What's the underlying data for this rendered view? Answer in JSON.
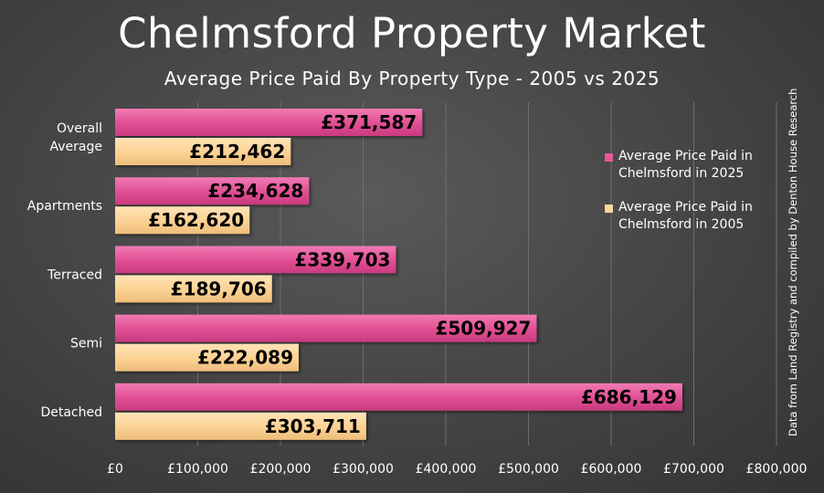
{
  "chart_data": {
    "type": "bar",
    "orientation": "horizontal",
    "title": "Chelmsford Property Market",
    "subtitle": "Average Price Paid By Property Type - 2005 vs 2025",
    "categories": [
      "Overall Average",
      "Apartments",
      "Terraced",
      "Semi",
      "Detached"
    ],
    "series": [
      {
        "name": "Average Price Paid in Chelmsford in 2025",
        "color": "#e8559a",
        "values": [
          371587,
          234628,
          339703,
          509927,
          686129
        ],
        "labels": [
          "£371,587",
          "£234,628",
          "£339,703",
          "£509,927",
          "£686,129"
        ]
      },
      {
        "name": "Average Price Paid in Chelmsford in 2005",
        "color": "#fcd59a",
        "values": [
          212462,
          162620,
          189706,
          222089,
          303711
        ],
        "labels": [
          "£212,462",
          "£162,620",
          "£189,706",
          "£222,089",
          "£303,711"
        ]
      }
    ],
    "xlim": [
      0,
      800000
    ],
    "x_ticks": [
      "£0",
      "£100,000",
      "£200,000",
      "£300,000",
      "£400,000",
      "£500,000",
      "£600,000",
      "£700,000",
      "£800,000"
    ],
    "grid": "vertical",
    "legend_position": "right",
    "source_note": "Data from Land Registry and compiled by Denton House Research"
  }
}
